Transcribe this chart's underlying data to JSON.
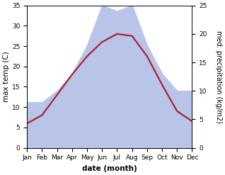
{
  "months": [
    "Jan",
    "Feb",
    "Mar",
    "Apr",
    "May",
    "Jun",
    "Jul",
    "Aug",
    "Sep",
    "Oct",
    "Nov",
    "Dec"
  ],
  "temp": [
    6.0,
    8.0,
    13.0,
    18.0,
    22.5,
    26.0,
    28.0,
    27.5,
    22.5,
    15.5,
    9.0,
    6.5
  ],
  "precip": [
    8.0,
    8.0,
    10.0,
    13.0,
    18.0,
    25.0,
    24.0,
    25.0,
    18.0,
    13.0,
    10.0,
    10.0
  ],
  "temp_color": "#aa2233",
  "precip_fill_color": "#b8c4e8",
  "precip_line_color": "#b8c4e8",
  "ylim_temp": [
    0,
    35
  ],
  "ylim_precip": [
    0,
    25
  ],
  "yticks_temp": [
    0,
    5,
    10,
    15,
    20,
    25,
    30,
    35
  ],
  "yticks_precip": [
    0,
    5,
    10,
    15,
    20,
    25
  ],
  "xlabel": "date (month)",
  "ylabel_left": "max temp (C)",
  "ylabel_right": "med. precipitation (kg/m2)",
  "bg_color": "#ffffff",
  "label_fontsize": 7.5,
  "tick_fontsize": 6.5,
  "temp_linewidth": 1.6,
  "scale_factor": 1.4
}
